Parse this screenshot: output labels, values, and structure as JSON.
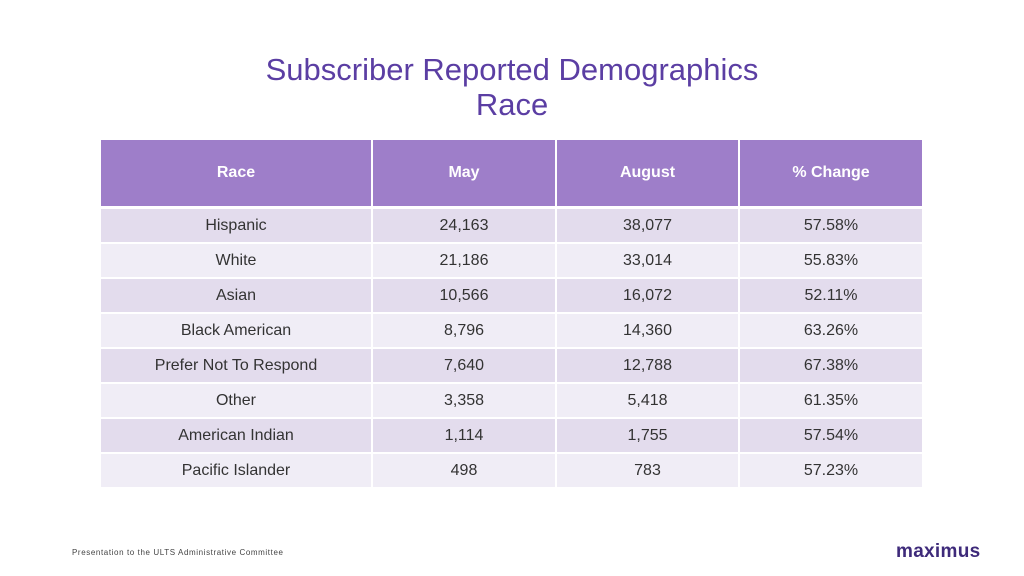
{
  "title": {
    "line1": "Subscriber Reported Demographics",
    "line2": "Race"
  },
  "table": {
    "headers": [
      "Race",
      "May",
      "August",
      "% Change"
    ],
    "rows": [
      [
        "Hispanic",
        "24,163",
        "38,077",
        "57.58%"
      ],
      [
        "White",
        "21,186",
        "33,014",
        "55.83%"
      ],
      [
        "Asian",
        "10,566",
        "16,072",
        "52.11%"
      ],
      [
        "Black American",
        "8,796",
        "14,360",
        "63.26%"
      ],
      [
        "Prefer Not To Respond",
        "7,640",
        "12,788",
        "67.38%"
      ],
      [
        "Other",
        "3,358",
        "5,418",
        "61.35%"
      ],
      [
        "American Indian",
        "1,114",
        "1,755",
        "57.54%"
      ],
      [
        "Pacific Islander",
        "498",
        "783",
        "57.23%"
      ]
    ]
  },
  "footer": {
    "text": "Presentation to the ULTS Administrative Committee",
    "logo": "maximus"
  },
  "colors": {
    "title": "#5b3ea3",
    "header_bg": "#9e7ec9",
    "row_odd": "#e3dced",
    "row_even": "#f0edf6",
    "logo": "#3e2a7a"
  }
}
